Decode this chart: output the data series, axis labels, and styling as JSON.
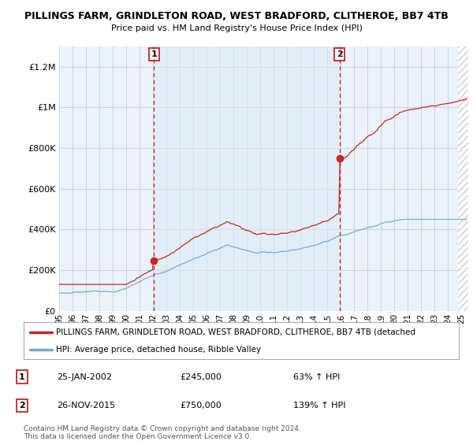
{
  "title": "PILLINGS FARM, GRINDLETON ROAD, WEST BRADFORD, CLITHEROE, BB7 4TB",
  "subtitle": "Price paid vs. HM Land Registry's House Price Index (HPI)",
  "ylim": [
    0,
    1300000
  ],
  "yticks": [
    0,
    200000,
    400000,
    600000,
    800000,
    1000000,
    1200000
  ],
  "ytick_labels": [
    "£0",
    "£200K",
    "£400K",
    "£600K",
    "£800K",
    "£1M",
    "£1.2M"
  ],
  "xlim_start": 1995.0,
  "xlim_end": 2025.5,
  "sale1_x": 2002.08,
  "sale1_y": 245000,
  "sale2_x": 2015.9,
  "sale2_y": 750000,
  "sale1_label": "1",
  "sale2_label": "2",
  "sale1_date": "25-JAN-2002",
  "sale1_amount": "£245,000",
  "sale1_pct": "63% ↑ HPI",
  "sale2_date": "26-NOV-2015",
  "sale2_amount": "£750,000",
  "sale2_pct": "139% ↑ HPI",
  "legend_property": "PILLINGS FARM, GRINDLETON ROAD, WEST BRADFORD, CLITHEROE, BB7 4TB (detached",
  "legend_hpi": "HPI: Average price, detached house, Ribble Valley",
  "footnote1": "Contains HM Land Registry data © Crown copyright and database right 2024.",
  "footnote2": "This data is licensed under the Open Government Licence v3.0.",
  "property_line_color": "#cc2222",
  "hpi_line_color": "#7aaacf",
  "vline_color": "#cc2222",
  "background_color": "#ffffff",
  "chart_bg_color": "#eaf3fb",
  "grid_color": "#cccccc",
  "hatch_color": "#cccccc"
}
